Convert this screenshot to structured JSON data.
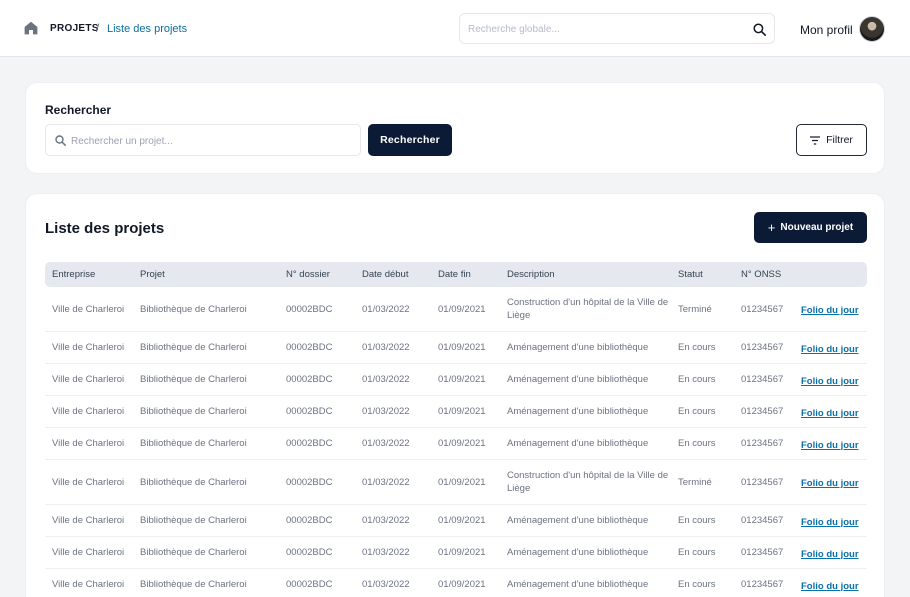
{
  "header": {
    "breadcrumb_root": "PROJETS",
    "breadcrumb_separator": "/",
    "breadcrumb_current": "Liste des projets",
    "global_search_placeholder": "Recherche globale...",
    "profile_label": "Mon profil"
  },
  "search_card": {
    "title": "Rechercher",
    "input_placeholder": "Rechercher un projet...",
    "search_button": "Rechercher",
    "filter_button": "Filtrer"
  },
  "list_card": {
    "title": "Liste des projets",
    "new_button": "Nouveau projet"
  },
  "table": {
    "columns": [
      "Entreprise",
      "Projet",
      "N° dossier",
      "Date début",
      "Date fin",
      "Description",
      "Statut",
      "N° ONSS",
      ""
    ],
    "rows": [
      {
        "entreprise": "Ville de Charleroi",
        "projet": "Bibliothèque de Charleroi",
        "dossier": "00002BDC",
        "debut": "01/03/2022",
        "fin": "01/09/2021",
        "description": "Construction d'un hôpital de la Ville de Liège",
        "statut": "Terminé",
        "onss": "01234567",
        "action": "Folio du jour"
      },
      {
        "entreprise": "Ville de Charleroi",
        "projet": "Bibliothèque de Charleroi",
        "dossier": "00002BDC",
        "debut": "01/03/2022",
        "fin": "01/09/2021",
        "description": "Aménagement d'une bibliothèque",
        "statut": "En cours",
        "onss": "01234567",
        "action": "Folio du jour"
      },
      {
        "entreprise": "Ville de Charleroi",
        "projet": "Bibliothèque de Charleroi",
        "dossier": "00002BDC",
        "debut": "01/03/2022",
        "fin": "01/09/2021",
        "description": "Aménagement d'une bibliothèque",
        "statut": "En cours",
        "onss": "01234567",
        "action": "Folio du jour"
      },
      {
        "entreprise": "Ville de Charleroi",
        "projet": "Bibliothèque de Charleroi",
        "dossier": "00002BDC",
        "debut": "01/03/2022",
        "fin": "01/09/2021",
        "description": "Aménagement d'une bibliothèque",
        "statut": "En cours",
        "onss": "01234567",
        "action": "Folio du jour"
      },
      {
        "entreprise": "Ville de Charleroi",
        "projet": "Bibliothèque de Charleroi",
        "dossier": "00002BDC",
        "debut": "01/03/2022",
        "fin": "01/09/2021",
        "description": "Aménagement d'une bibliothèque",
        "statut": "En cours",
        "onss": "01234567",
        "action": "Folio du jour"
      },
      {
        "entreprise": "Ville de Charleroi",
        "projet": "Bibliothèque de Charleroi",
        "dossier": "00002BDC",
        "debut": "01/03/2022",
        "fin": "01/09/2021",
        "description": "Construction d'un hôpital de la Ville de Liège",
        "statut": "Terminé",
        "onss": "01234567",
        "action": "Folio du jour"
      },
      {
        "entreprise": "Ville de Charleroi",
        "projet": "Bibliothèque de Charleroi",
        "dossier": "00002BDC",
        "debut": "01/03/2022",
        "fin": "01/09/2021",
        "description": "Aménagement d'une bibliothèque",
        "statut": "En cours",
        "onss": "01234567",
        "action": "Folio du jour"
      },
      {
        "entreprise": "Ville de Charleroi",
        "projet": "Bibliothèque de Charleroi",
        "dossier": "00002BDC",
        "debut": "01/03/2022",
        "fin": "01/09/2021",
        "description": "Aménagement d'une bibliothèque",
        "statut": "En cours",
        "onss": "01234567",
        "action": "Folio du jour"
      },
      {
        "entreprise": "Ville de Charleroi",
        "projet": "Bibliothèque de Charleroi",
        "dossier": "00002BDC",
        "debut": "01/03/2022",
        "fin": "01/09/2021",
        "description": "Aménagement d'une bibliothèque",
        "statut": "En cours",
        "onss": "01234567",
        "action": "Folio du jour"
      }
    ]
  },
  "icons": {
    "home": "home-icon",
    "global_search": "search-icon",
    "project_search": "search-icon",
    "filter": "filter-icon",
    "new": "plus-icon",
    "avatar": "avatar"
  },
  "colors": {
    "primary": "#0b1b36",
    "link": "#0b6fa8",
    "breadcrumb_active": "#0e6e9a",
    "header_row": "#e5e9ef",
    "background": "#f3f4f6"
  }
}
